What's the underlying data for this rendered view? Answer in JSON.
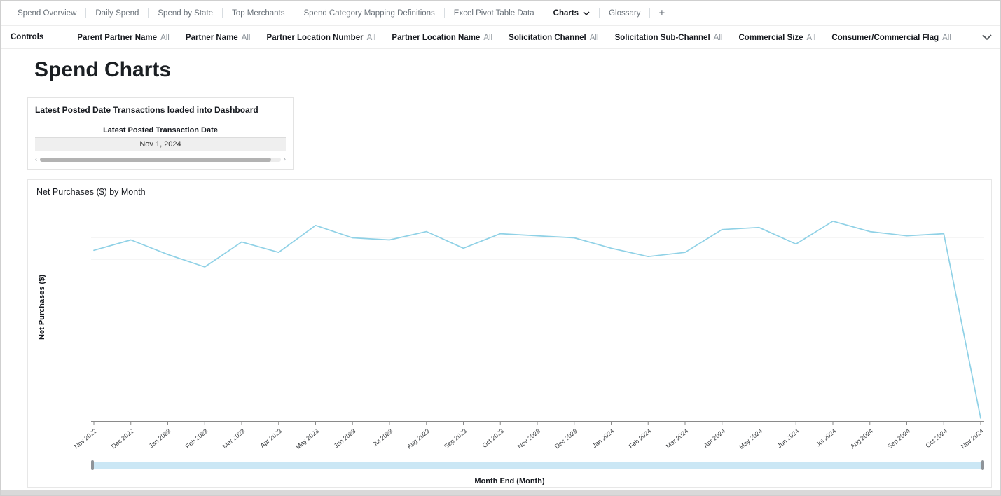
{
  "tabs": {
    "items": [
      {
        "label": "Spend Overview",
        "active": false
      },
      {
        "label": "Daily Spend",
        "active": false
      },
      {
        "label": "Spend by State",
        "active": false
      },
      {
        "label": "Top Merchants",
        "active": false
      },
      {
        "label": "Spend Category Mapping Definitions",
        "active": false
      },
      {
        "label": "Excel Pivot Table Data",
        "active": false
      },
      {
        "label": "Charts",
        "active": true
      },
      {
        "label": "Glossary",
        "active": false
      }
    ],
    "add_tab_label": "+"
  },
  "controls_bar": {
    "title": "Controls",
    "filters": [
      {
        "name": "Parent Partner Name",
        "value": "All"
      },
      {
        "name": "Partner Name",
        "value": "All"
      },
      {
        "name": "Partner Location Number",
        "value": "All"
      },
      {
        "name": "Partner Location Name",
        "value": "All"
      },
      {
        "name": "Solicitation Channel",
        "value": "All"
      },
      {
        "name": "Solicitation Sub-Channel",
        "value": "All"
      },
      {
        "name": "Commercial Size",
        "value": "All"
      },
      {
        "name": "Consumer/Commercial Flag",
        "value": "All"
      }
    ]
  },
  "page": {
    "title": "Spend Charts"
  },
  "latest_posted_card": {
    "title": "Latest Posted Date Transactions loaded into Dashboard",
    "table": {
      "header": "Latest Posted Transaction Date",
      "value": "Nov 1, 2024"
    }
  },
  "chart_data": {
    "type": "line",
    "title": "Net Purchases ($) by Month",
    "xlabel": "Month End (Month)",
    "ylabel": "Net Purchases ($)",
    "categories": [
      "Nov 2022",
      "Dec 2022",
      "Jan 2023",
      "Feb 2023",
      "Mar 2023",
      "Apr 2023",
      "May 2023",
      "Jun 2023",
      "Jul 2023",
      "Aug 2023",
      "Sep 2023",
      "Oct 2023",
      "Nov 2023",
      "Dec 2023",
      "Jan 2024",
      "Feb 2024",
      "Mar 2024",
      "Apr 2024",
      "May 2024",
      "Jun 2024",
      "Jul 2024",
      "Aug 2024",
      "Sep 2024",
      "Oct 2024",
      "Nov 2024"
    ],
    "series": [
      {
        "name": "Net Purchases ($)",
        "values": [
          82,
          87,
          80,
          74,
          86,
          81,
          94,
          88,
          87,
          91,
          83,
          90,
          89,
          88,
          83,
          79,
          81,
          92,
          93,
          85,
          96,
          91,
          89,
          90,
          1
        ]
      }
    ],
    "ylim": [
      0,
      100
    ],
    "y_tick_labels_visible": false,
    "grid": "faint-horizontal",
    "legend": "none",
    "line_color": "#8FD1E6"
  },
  "colors": {
    "line": "#8FD1E6",
    "slider_track": "#CBE7F5",
    "active_tab_text": "#16191F",
    "inactive_tab_text": "#687078",
    "muted_value_text": "#8D949B"
  }
}
